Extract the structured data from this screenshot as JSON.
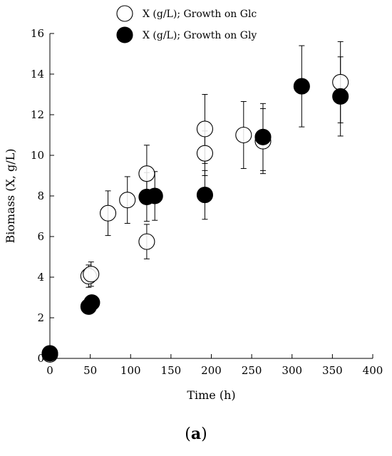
{
  "caption": {
    "open": "(",
    "letter": "a",
    "close": ")"
  },
  "chart_data": {
    "type": "scatter",
    "xlabel": "Time (h)",
    "ylabel": "Biomass (X, g/L)",
    "xlim": [
      0,
      400
    ],
    "ylim": [
      0,
      16
    ],
    "xticks": [
      0,
      50,
      100,
      150,
      200,
      250,
      300,
      350,
      400
    ],
    "yticks": [
      0,
      2,
      4,
      6,
      8,
      10,
      12,
      14,
      16
    ],
    "grid": false,
    "legend_position": "top-center",
    "series": [
      {
        "name": "X (g/L); Growth on Glc",
        "marker": "open-circle",
        "color": "#000000",
        "points": [
          {
            "x": 0,
            "y": 0.2,
            "err": 0
          },
          {
            "x": 48,
            "y": 4.05,
            "err": 0.55
          },
          {
            "x": 51,
            "y": 4.15,
            "err": 0.6
          },
          {
            "x": 72,
            "y": 7.15,
            "err": 1.1
          },
          {
            "x": 96,
            "y": 7.8,
            "err": 1.15
          },
          {
            "x": 120,
            "y": 5.75,
            "err": 0.85
          },
          {
            "x": 120,
            "y": 9.1,
            "err": 1.4
          },
          {
            "x": 192,
            "y": 10.1,
            "err": 1.1
          },
          {
            "x": 192,
            "y": 11.3,
            "err": 1.7
          },
          {
            "x": 240,
            "y": 11.0,
            "err": 1.65
          },
          {
            "x": 264,
            "y": 10.7,
            "err": 1.6
          },
          {
            "x": 360,
            "y": 13.6,
            "err": 2.0
          }
        ]
      },
      {
        "name": "X (g/L); Growth on Gly",
        "marker": "filled-circle",
        "color": "#000000",
        "points": [
          {
            "x": 0,
            "y": 0.25,
            "err": 0
          },
          {
            "x": 48,
            "y": 2.55,
            "err": 0
          },
          {
            "x": 52,
            "y": 2.75,
            "err": 0
          },
          {
            "x": 120,
            "y": 7.95,
            "err": 1.2
          },
          {
            "x": 130,
            "y": 8.0,
            "err": 1.2
          },
          {
            "x": 192,
            "y": 8.05,
            "err": 1.2
          },
          {
            "x": 264,
            "y": 10.9,
            "err": 1.65
          },
          {
            "x": 312,
            "y": 13.4,
            "err": 2.0
          },
          {
            "x": 360,
            "y": 12.9,
            "err": 1.95
          }
        ]
      }
    ]
  }
}
